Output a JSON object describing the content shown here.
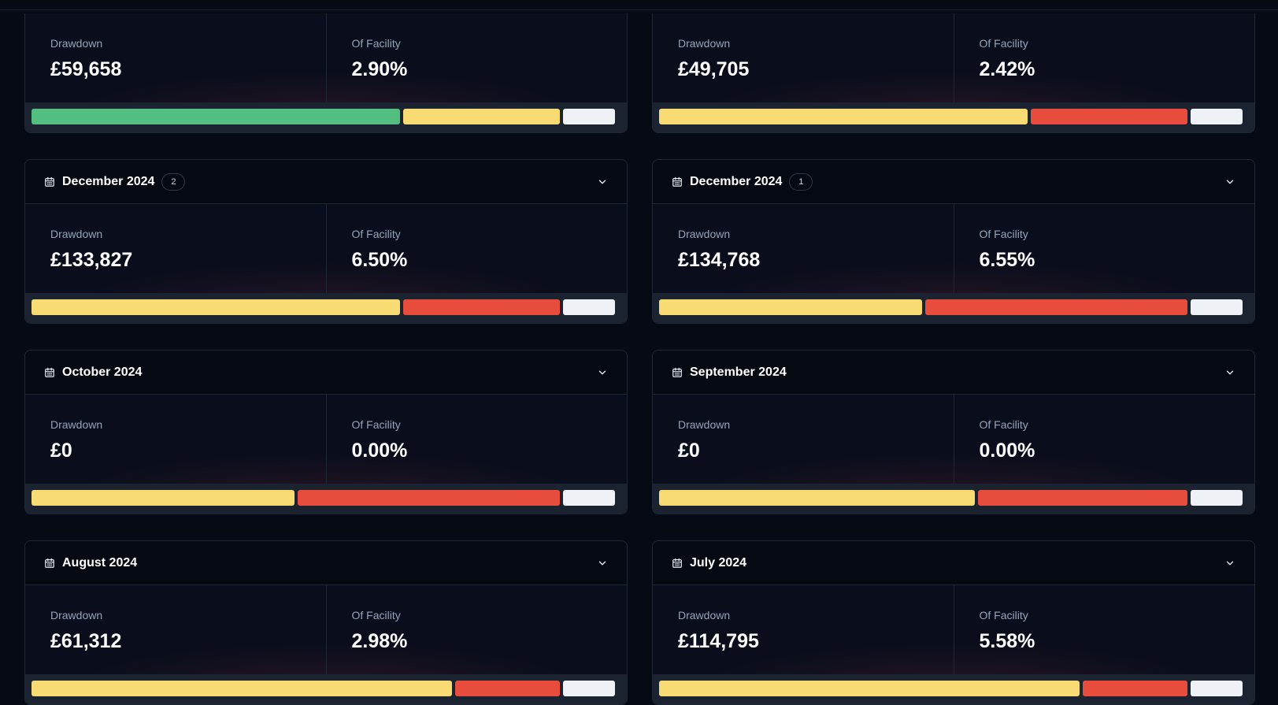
{
  "colors": {
    "green": "#52be80",
    "yellow": "#f8dc73",
    "red": "#e74c3c",
    "white": "#eef1f6"
  },
  "labels": {
    "drawdown": "Drawdown",
    "facility": "Of Facility"
  },
  "cards": [
    {
      "month": "",
      "count": "",
      "drawdown": "£59,658",
      "facility": "2.90%",
      "segments": [
        {
          "color": "green",
          "weight": 0.632
        },
        {
          "color": "yellow",
          "weight": 0.269
        },
        {
          "color": "white",
          "weight": 0.09
        }
      ]
    },
    {
      "month": "",
      "count": "",
      "drawdown": "£49,705",
      "facility": "2.42%",
      "segments": [
        {
          "color": "yellow",
          "weight": 0.632
        },
        {
          "color": "red",
          "weight": 0.269
        },
        {
          "color": "white",
          "weight": 0.09
        }
      ]
    },
    {
      "month": "December 2024",
      "count": "2",
      "drawdown": "£133,827",
      "facility": "6.50%",
      "segments": [
        {
          "color": "yellow",
          "weight": 0.632
        },
        {
          "color": "red",
          "weight": 0.269
        },
        {
          "color": "white",
          "weight": 0.09
        }
      ]
    },
    {
      "month": "December 2024",
      "count": "1",
      "drawdown": "£134,768",
      "facility": "6.55%",
      "segments": [
        {
          "color": "yellow",
          "weight": 0.452
        },
        {
          "color": "red",
          "weight": 0.449
        },
        {
          "color": "white",
          "weight": 0.09
        }
      ]
    },
    {
      "month": "October 2024",
      "count": "",
      "drawdown": "£0",
      "facility": "0.00%",
      "segments": [
        {
          "color": "yellow",
          "weight": 0.452
        },
        {
          "color": "red",
          "weight": 0.449
        },
        {
          "color": "white",
          "weight": 0.09
        }
      ]
    },
    {
      "month": "September 2024",
      "count": "",
      "drawdown": "£0",
      "facility": "0.00%",
      "segments": [
        {
          "color": "yellow",
          "weight": 0.542
        },
        {
          "color": "red",
          "weight": 0.359
        },
        {
          "color": "white",
          "weight": 0.09
        }
      ]
    },
    {
      "month": "August 2024",
      "count": "",
      "drawdown": "£61,312",
      "facility": "2.98%",
      "segments": [
        {
          "color": "yellow",
          "weight": 0.722
        },
        {
          "color": "red",
          "weight": 0.179
        },
        {
          "color": "white",
          "weight": 0.09
        }
      ]
    },
    {
      "month": "July 2024",
      "count": "",
      "drawdown": "£114,795",
      "facility": "5.58%",
      "segments": [
        {
          "color": "yellow",
          "weight": 0.722
        },
        {
          "color": "red",
          "weight": 0.179
        },
        {
          "color": "white",
          "weight": 0.09
        }
      ]
    }
  ]
}
